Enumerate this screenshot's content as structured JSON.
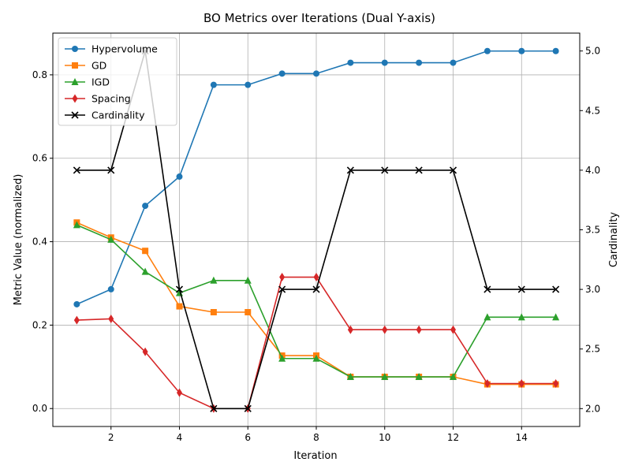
{
  "chart_data": {
    "type": "line",
    "title": "BO Metrics over Iterations (Dual Y-axis)",
    "xlabel": "Iteration",
    "ylabel_left": "Metric Value (normalized)",
    "ylabel_right": "Cardinality",
    "xlim": [
      0.3,
      15.7
    ],
    "ylim_left": [
      -0.043,
      0.9
    ],
    "ylim_right": [
      1.85,
      5.15
    ],
    "xticks": [
      2,
      4,
      6,
      8,
      10,
      12,
      14
    ],
    "yticks_left": [
      0.0,
      0.2,
      0.4,
      0.6,
      0.8
    ],
    "yticks_right": [
      2.0,
      2.5,
      3.0,
      3.5,
      4.0,
      4.5,
      5.0
    ],
    "grid": true,
    "legend_position": "top-left",
    "x": [
      1,
      2,
      3,
      4,
      5,
      6,
      7,
      8,
      9,
      10,
      11,
      12,
      13,
      14,
      15
    ],
    "series": [
      {
        "name": "Hypervolume",
        "axis": "left",
        "color": "#1f77b4",
        "marker": "circle",
        "values": [
          0.25,
          0.286,
          0.486,
          0.556,
          0.776,
          0.776,
          0.803,
          0.803,
          0.829,
          0.829,
          0.829,
          0.829,
          0.857,
          0.857,
          0.857
        ]
      },
      {
        "name": "GD",
        "axis": "left",
        "color": "#ff7f0e",
        "marker": "square",
        "values": [
          0.446,
          0.41,
          0.378,
          0.245,
          0.231,
          0.231,
          0.127,
          0.127,
          0.076,
          0.076,
          0.076,
          0.076,
          0.058,
          0.058,
          0.058
        ]
      },
      {
        "name": "IGD",
        "axis": "left",
        "color": "#2ca02c",
        "marker": "triangle",
        "values": [
          0.44,
          0.405,
          0.328,
          0.277,
          0.307,
          0.307,
          0.12,
          0.12,
          0.076,
          0.076,
          0.076,
          0.076,
          0.219,
          0.219,
          0.219
        ]
      },
      {
        "name": "Spacing",
        "axis": "left",
        "color": "#d62728",
        "marker": "diamond",
        "values": [
          0.212,
          0.215,
          0.136,
          0.038,
          0.0,
          0.0,
          0.315,
          0.315,
          0.189,
          0.189,
          0.189,
          0.189,
          0.06,
          0.06,
          0.06
        ]
      },
      {
        "name": "Cardinality",
        "axis": "right",
        "color": "#000000",
        "marker": "x",
        "values": [
          4,
          4,
          5,
          3,
          2,
          2,
          3,
          3,
          4,
          4,
          4,
          4,
          3,
          3,
          3
        ]
      }
    ]
  }
}
